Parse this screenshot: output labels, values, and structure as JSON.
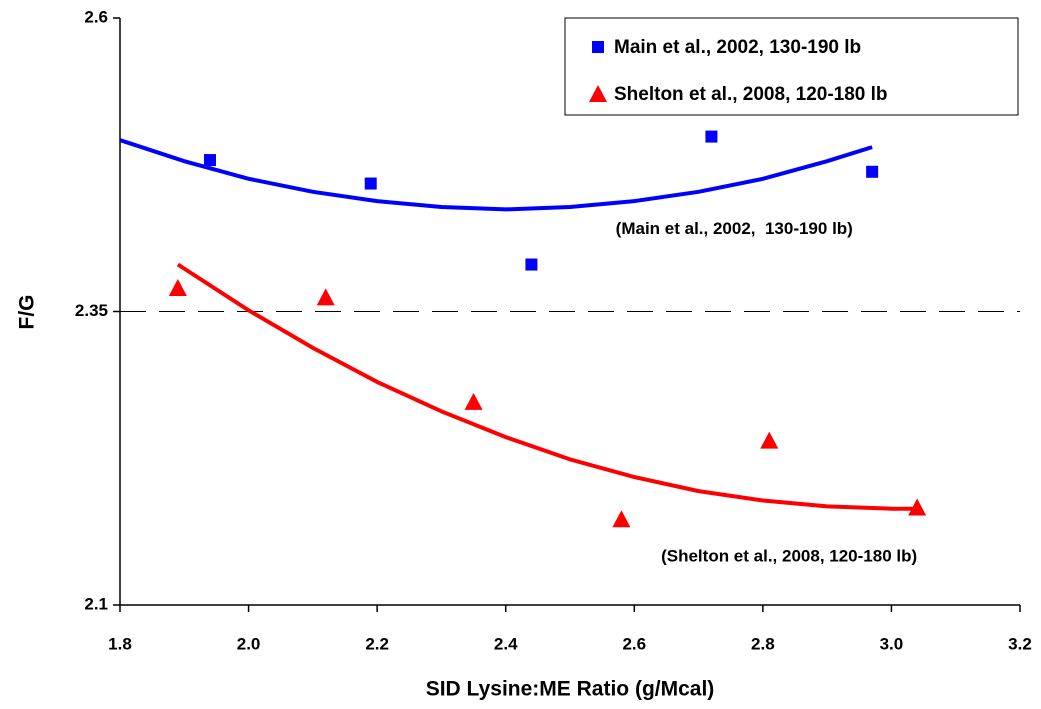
{
  "chart_data": {
    "type": "scatter",
    "xlabel": "SID Lysine:ME Ratio (g/Mcal)",
    "ylabel": "F/G",
    "xlim": [
      1.8,
      3.2
    ],
    "xticks": [
      1.8,
      {
        "value": 2.0,
        "label": "2.0"
      },
      2.2,
      2.4,
      2.6,
      2.8,
      {
        "value": 3.0,
        "label": "3.0"
      },
      3.2
    ],
    "ylim": [
      2.1,
      2.6
    ],
    "yticks": [
      2.1,
      2.35,
      2.6
    ],
    "reference_line": 2.35,
    "legend": "upper right",
    "series": [
      {
        "name": "Main et al., 2002, 130-190 lb",
        "color": "#0000ff",
        "marker": "square",
        "x": [
          1.94,
          2.19,
          2.44,
          2.72,
          2.97
        ],
        "values": [
          2.479,
          2.459,
          2.39,
          2.499,
          2.469
        ]
      },
      {
        "name": "Shelton et al., 2008, 120-180 lb",
        "color": "#ff0000",
        "marker": "triangle",
        "x": [
          1.89,
          2.12,
          2.35,
          2.58,
          2.81,
          3.04
        ],
        "values": [
          2.37,
          2.362,
          2.273,
          2.173,
          2.24,
          2.183
        ]
      }
    ],
    "trendlines": [
      {
        "color": "#0000ff",
        "x": [
          1.8,
          1.9,
          2.0,
          2.1,
          2.2,
          2.3,
          2.4,
          2.5,
          2.6,
          2.7,
          2.8,
          2.9,
          2.97
        ],
        "values": [
          2.496,
          2.478,
          2.463,
          2.452,
          2.444,
          2.439,
          2.437,
          2.439,
          2.444,
          2.452,
          2.463,
          2.478,
          2.49
        ]
      },
      {
        "color": "#ff0000",
        "x": [
          1.89,
          2.0,
          2.1,
          2.2,
          2.3,
          2.4,
          2.5,
          2.6,
          2.7,
          2.8,
          2.9,
          3.0,
          3.04
        ],
        "values": [
          2.39,
          2.351,
          2.319,
          2.29,
          2.265,
          2.243,
          2.224,
          2.209,
          2.197,
          2.189,
          2.184,
          2.182,
          2.182
        ]
      }
    ],
    "annotations": [
      {
        "text": "(Main et al., 2002,  130-190 lb)",
        "x": 2.94,
        "y": 2.42
      },
      {
        "text": "(Shelton et al., 2008, 120-180 lb)",
        "x": 3.04,
        "y": 2.141
      }
    ]
  }
}
